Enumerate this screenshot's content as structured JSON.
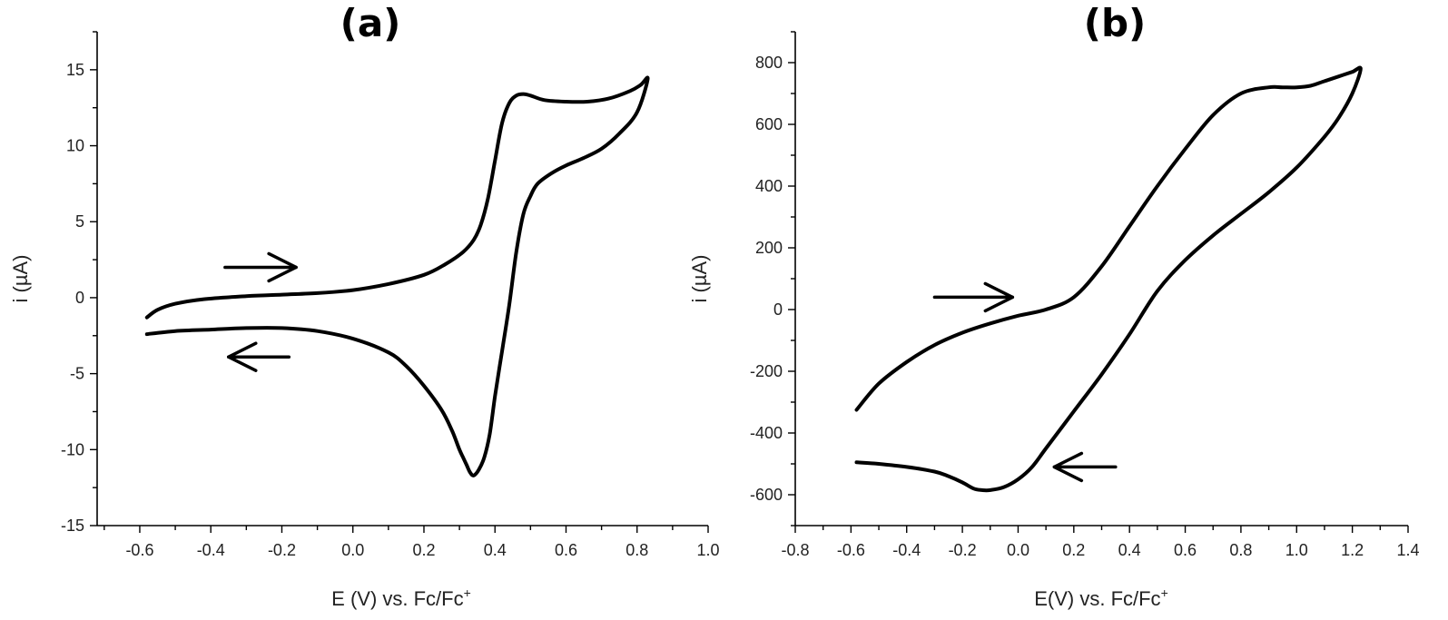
{
  "chart_data": [
    {
      "type": "line",
      "title": "(a)",
      "xlabel": "E (V) vs. Fc/Fc",
      "xlabel_sup": "+",
      "ylabel": "i (µA)",
      "xlim": [
        -0.72,
        1.0
      ],
      "ylim": [
        -15,
        17.5
      ],
      "xticks": [
        -0.6,
        -0.4,
        -0.2,
        0.0,
        0.2,
        0.4,
        0.6,
        0.8,
        1.0
      ],
      "xtick_labels": [
        "-0.6",
        "-0.4",
        "-0.2",
        "0.0",
        "0.2",
        "0.4",
        "0.6",
        "0.8",
        "1.0"
      ],
      "xminor": [
        -0.7,
        -0.5,
        -0.3,
        -0.1,
        0.1,
        0.3,
        0.5,
        0.7,
        0.9
      ],
      "yticks": [
        -15,
        -10,
        -5,
        0,
        5,
        10,
        15
      ],
      "ytick_labels": [
        "-15",
        "-10",
        "-5",
        "0",
        "5",
        "10",
        "15"
      ],
      "yminor": [
        -12.5,
        -7.5,
        -2.5,
        2.5,
        7.5,
        12.5,
        17.5
      ],
      "series": [
        {
          "x": [
            -0.58,
            -0.55,
            -0.5,
            -0.42,
            -0.3,
            -0.2,
            -0.1,
            0.0,
            0.1,
            0.2,
            0.26,
            0.31,
            0.34,
            0.36,
            0.38,
            0.4,
            0.42,
            0.44,
            0.46,
            0.48,
            0.5,
            0.54,
            0.6,
            0.66,
            0.72,
            0.78,
            0.81,
            0.83,
            0.8,
            0.75,
            0.7,
            0.65,
            0.6,
            0.56,
            0.52,
            0.5,
            0.48,
            0.46,
            0.44,
            0.42,
            0.4,
            0.385,
            0.37,
            0.355,
            0.34,
            0.33,
            0.32,
            0.31,
            0.3,
            0.28,
            0.25,
            0.2,
            0.15,
            0.1,
            0.0,
            -0.1,
            -0.2,
            -0.3,
            -0.4,
            -0.5,
            -0.58
          ],
          "y": [
            -1.3,
            -0.8,
            -0.4,
            -0.1,
            0.1,
            0.2,
            0.3,
            0.5,
            0.9,
            1.5,
            2.2,
            3.0,
            3.8,
            4.8,
            6.5,
            9.0,
            11.5,
            12.8,
            13.3,
            13.4,
            13.3,
            13.0,
            12.9,
            12.9,
            13.1,
            13.6,
            14.0,
            14.4,
            12.2,
            10.8,
            9.8,
            9.2,
            8.7,
            8.2,
            7.5,
            6.7,
            5.5,
            3.0,
            -0.5,
            -3.5,
            -6.5,
            -9.0,
            -10.5,
            -11.3,
            -11.7,
            -11.5,
            -11.0,
            -10.5,
            -10.0,
            -8.8,
            -7.4,
            -5.8,
            -4.5,
            -3.6,
            -2.7,
            -2.2,
            -2.0,
            -2.0,
            -2.1,
            -2.2,
            -2.4
          ]
        }
      ],
      "arrows": [
        {
          "direction": "right",
          "x_start": -0.36,
          "x_end": -0.16,
          "y": 2.0
        },
        {
          "direction": "left",
          "x_start": -0.18,
          "x_end": -0.35,
          "y": -3.9
        }
      ]
    },
    {
      "type": "line",
      "title": "(b)",
      "xlabel": "E(V) vs. Fc/Fc",
      "xlabel_sup": "+",
      "ylabel": "i (µA)",
      "xlim": [
        -0.8,
        1.4
      ],
      "ylim": [
        -700,
        900
      ],
      "xticks": [
        -0.8,
        -0.6,
        -0.4,
        -0.2,
        0.0,
        0.2,
        0.4,
        0.6,
        0.8,
        1.0,
        1.2,
        1.4
      ],
      "xtick_labels": [
        "-0.8",
        "-0.6",
        "-0.4",
        "-0.2",
        "0.0",
        "0.2",
        "0.4",
        "0.6",
        "0.8",
        "1.0",
        "1.2",
        "1.4"
      ],
      "xminor": [
        -0.7,
        -0.5,
        -0.3,
        -0.1,
        0.1,
        0.3,
        0.5,
        0.7,
        0.9,
        1.1,
        1.3
      ],
      "yticks": [
        -600,
        -400,
        -200,
        0,
        200,
        400,
        600,
        800
      ],
      "ytick_labels": [
        "-600",
        "-400",
        "-200",
        "0",
        "200",
        "400",
        "600",
        "800"
      ],
      "yminor": [
        -700,
        -500,
        -300,
        -100,
        100,
        300,
        500,
        700,
        900
      ],
      "series": [
        {
          "x": [
            -0.58,
            -0.5,
            -0.4,
            -0.3,
            -0.2,
            -0.1,
            0.0,
            0.1,
            0.2,
            0.3,
            0.4,
            0.5,
            0.6,
            0.7,
            0.8,
            0.9,
            0.95,
            1.0,
            1.05,
            1.1,
            1.15,
            1.2,
            1.23,
            1.2,
            1.15,
            1.1,
            1.0,
            0.9,
            0.8,
            0.7,
            0.6,
            0.5,
            0.4,
            0.3,
            0.2,
            0.1,
            0.05,
            0.0,
            -0.05,
            -0.1,
            -0.13,
            -0.16,
            -0.2,
            -0.25,
            -0.3,
            -0.4,
            -0.5,
            -0.58
          ],
          "y": [
            -325,
            -240,
            -170,
            -115,
            -75,
            -45,
            -20,
            0,
            40,
            140,
            270,
            400,
            520,
            630,
            700,
            720,
            720,
            720,
            725,
            740,
            755,
            770,
            780,
            700,
            620,
            560,
            460,
            380,
            310,
            240,
            160,
            60,
            -80,
            -210,
            -330,
            -450,
            -510,
            -550,
            -575,
            -585,
            -585,
            -580,
            -560,
            -540,
            -525,
            -510,
            -500,
            -495
          ]
        }
      ],
      "arrows": [
        {
          "direction": "right",
          "x_start": -0.3,
          "x_end": -0.02,
          "y": 40
        },
        {
          "direction": "left",
          "x_start": 0.35,
          "x_end": 0.13,
          "y": -510
        }
      ]
    }
  ]
}
